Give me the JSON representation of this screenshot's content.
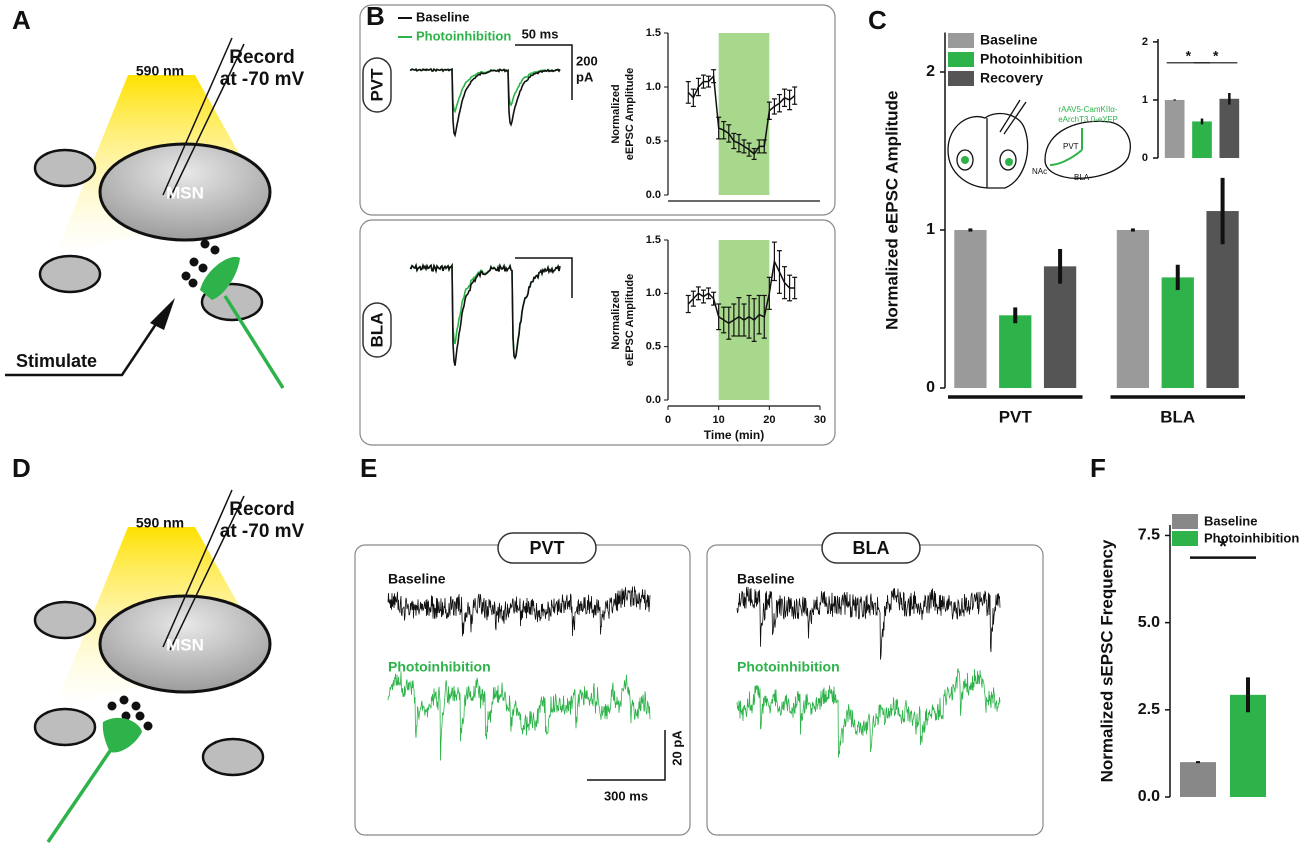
{
  "panels": [
    "A",
    "B",
    "C",
    "D",
    "E",
    "F"
  ],
  "schematic": {
    "light": "590 nm",
    "record": [
      "Record",
      "at -70 mV"
    ],
    "cell": "MSN",
    "stimulate": "Stimulate"
  },
  "evoked": {
    "legend": [
      "Baseline",
      "Photoinhibition"
    ],
    "scale_x": "50 ms",
    "scale_y": [
      "200",
      "pA"
    ],
    "regions": [
      "PVT",
      "BLA"
    ]
  },
  "injection": {
    "virus": [
      "rAAV5-CamKIIα-",
      "eArchT3.0-eYFP"
    ],
    "labels": [
      "PVT",
      "NAc",
      "BLA"
    ]
  },
  "spontaneous": {
    "regions": [
      "PVT",
      "BLA"
    ],
    "conditions": [
      "Baseline",
      "Photoinhibition"
    ],
    "scale_y": "20 pA",
    "scale_x": "300 ms"
  },
  "chart_data": [
    {
      "type": "line",
      "ylabel": [
        "Normalized",
        "eEPSC Amplitude"
      ],
      "color": "#111111",
      "highlight_x": [
        10,
        20
      ],
      "highlight_color": "#a8d88c",
      "x": [
        4,
        5,
        6,
        7,
        8,
        9,
        10,
        11,
        12,
        13,
        14,
        15,
        16,
        17,
        18,
        19,
        20,
        21,
        22,
        23,
        24,
        25
      ],
      "values": [
        0.95,
        0.9,
        1.0,
        1.05,
        1.05,
        1.1,
        0.62,
        0.6,
        0.57,
        0.5,
        0.48,
        0.45,
        0.42,
        0.38,
        0.45,
        0.45,
        0.78,
        0.82,
        0.85,
        0.9,
        0.88,
        0.92
      ],
      "errors": [
        0.1,
        0.08,
        0.08,
        0.06,
        0.05,
        0.06,
        0.1,
        0.08,
        0.08,
        0.07,
        0.08,
        0.06,
        0.06,
        0.05,
        0.06,
        0.06,
        0.08,
        0.07,
        0.08,
        0.08,
        0.09,
        0.08
      ],
      "xlim": [
        0,
        30
      ],
      "ylim": [
        0,
        1.5
      ],
      "yticks": [
        {
          "value": 0,
          "label": "0.0"
        },
        {
          "value": 0.5,
          "label": "0.5"
        },
        {
          "value": 1,
          "label": "1.0"
        },
        {
          "value": 1.5,
          "label": "1.5"
        }
      ]
    },
    {
      "type": "line",
      "ylabel": [
        "Normalized",
        "eEPSC Amplitude"
      ],
      "xlabel": "Time (min)",
      "color": "#111111",
      "highlight_x": [
        10,
        20
      ],
      "highlight_color": "#a8d88c",
      "x": [
        4,
        5,
        6,
        7,
        8,
        9,
        10,
        11,
        12,
        13,
        14,
        15,
        16,
        17,
        18,
        19,
        20,
        21,
        22,
        23,
        24,
        25
      ],
      "values": [
        0.9,
        0.95,
        1.0,
        0.97,
        1.0,
        0.95,
        0.78,
        0.75,
        0.72,
        0.75,
        0.78,
        0.75,
        0.78,
        0.75,
        0.8,
        0.78,
        1.0,
        1.3,
        1.2,
        1.1,
        1.05,
        1.05
      ],
      "errors": [
        0.08,
        0.07,
        0.06,
        0.06,
        0.05,
        0.06,
        0.12,
        0.12,
        0.15,
        0.15,
        0.18,
        0.15,
        0.2,
        0.2,
        0.18,
        0.2,
        0.15,
        0.18,
        0.2,
        0.15,
        0.12,
        0.1
      ],
      "xlim": [
        0,
        30
      ],
      "ylim": [
        0,
        1.5
      ],
      "xticks": [
        0,
        10,
        20,
        30
      ],
      "yticks": [
        {
          "value": 0,
          "label": "0.0"
        },
        {
          "value": 0.5,
          "label": "0.5"
        },
        {
          "value": 1,
          "label": "1.0"
        },
        {
          "value": 1.5,
          "label": "1.5"
        }
      ]
    },
    {
      "type": "bar",
      "ylabel": "Normalized eEPSC Amplitude",
      "categories": [
        "PVT",
        "BLA"
      ],
      "legend": "top-left",
      "series": [
        {
          "name": "Baseline",
          "color": "#9a9a9a",
          "values": [
            1.0,
            1.0
          ],
          "errors": [
            0.01,
            0.01
          ]
        },
        {
          "name": "Photoinhibition",
          "color": "#2db34a",
          "values": [
            0.46,
            0.7
          ],
          "errors": [
            0.05,
            0.08
          ]
        },
        {
          "name": "Recovery",
          "color": "#555555",
          "values": [
            0.77,
            1.12
          ],
          "errors": [
            0.11,
            0.21
          ]
        }
      ],
      "ylim": [
        0,
        2.25
      ],
      "yticks": [
        0,
        1,
        2
      ]
    },
    {
      "type": "bar",
      "values": [
        1.0,
        0.63,
        1.02
      ],
      "errors": [
        0.01,
        0.05,
        0.1
      ],
      "colors": [
        "#9a9a9a",
        "#2db34a",
        "#555555"
      ],
      "annotations": [
        "*",
        "*"
      ],
      "ylim": [
        0,
        2.05
      ],
      "yticks": [
        0,
        1,
        2
      ]
    },
    {
      "type": "bar",
      "ylabel": "Normalized sEPSC Frequency",
      "legend": "top-left",
      "series": [
        {
          "name": "Baseline",
          "color": "#888888",
          "values": [
            1.0
          ],
          "errors": [
            0.03
          ]
        },
        {
          "name": "Photoinhibition",
          "color": "#2db34a",
          "values": [
            2.93
          ],
          "errors": [
            0.5
          ]
        }
      ],
      "annotations": [
        "*"
      ],
      "ylim": [
        0,
        7.8
      ],
      "yticks": [
        {
          "value": 0,
          "label": "0.0"
        },
        {
          "value": 2.5,
          "label": "2.5"
        },
        {
          "value": 5,
          "label": "5.0"
        },
        {
          "value": 7.5,
          "label": "7.5"
        }
      ]
    }
  ]
}
